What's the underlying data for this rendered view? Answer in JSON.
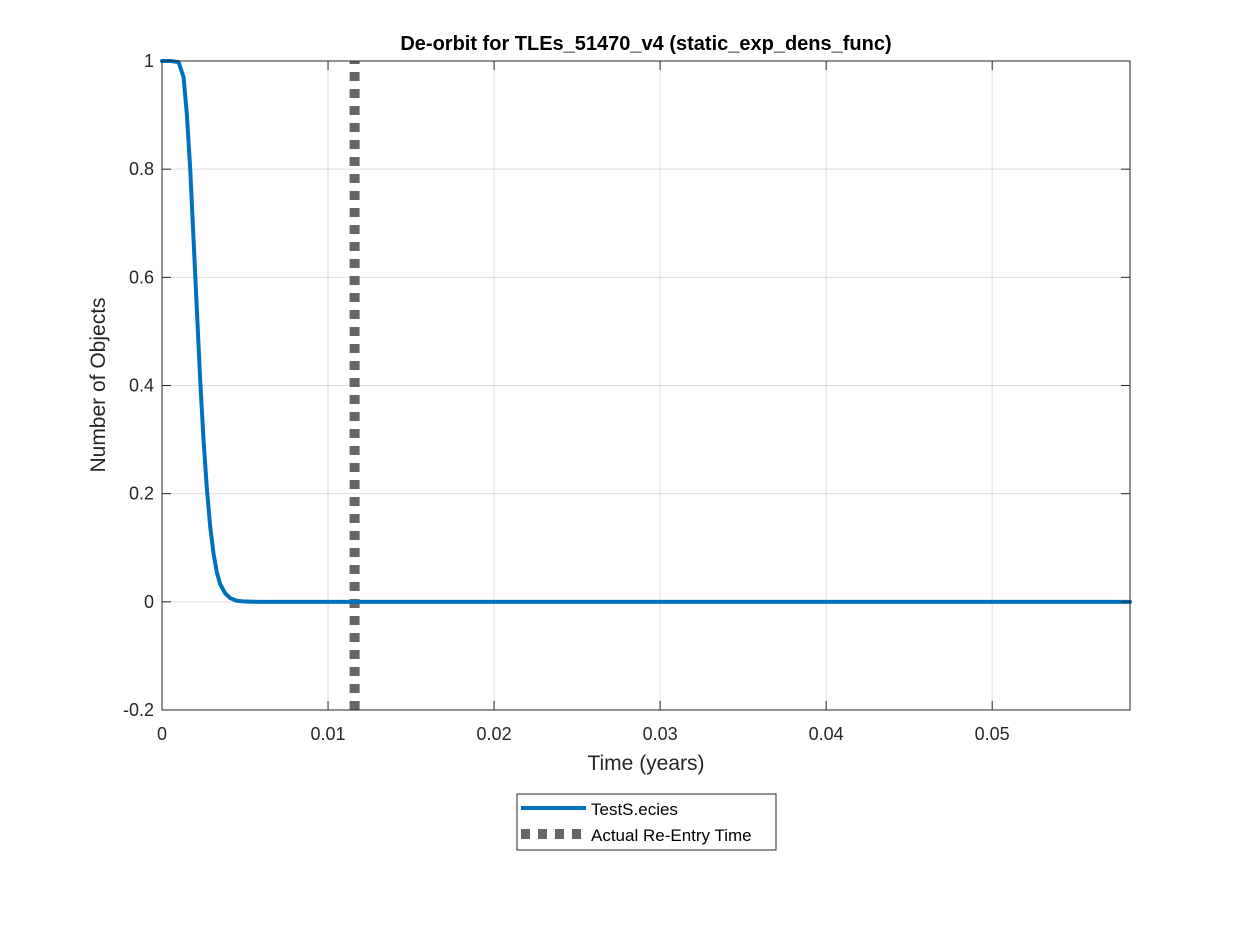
{
  "chart_data": {
    "type": "line",
    "title": "De-orbit for TLEs_51470_v4 (static_exp_dens_func)",
    "xlabel": "Time (years)",
    "ylabel": "Number of Objects",
    "xlim": [
      0,
      0.0583
    ],
    "ylim": [
      -0.2,
      1
    ],
    "xticks": [
      0,
      0.01,
      0.02,
      0.03,
      0.04,
      0.05
    ],
    "xtick_labels": [
      "0",
      "0.01",
      "0.02",
      "0.03",
      "0.04",
      "0.05"
    ],
    "yticks": [
      -0.2,
      0,
      0.2,
      0.4,
      0.6,
      0.8,
      1
    ],
    "ytick_labels": [
      "-0.2",
      "0",
      "0.2",
      "0.4",
      "0.6",
      "0.8",
      "1"
    ],
    "grid": true,
    "legend_position": "bottom-center outside",
    "series": [
      {
        "name": "TestS.ecies",
        "color": "#0072BD",
        "style": "solid",
        "x": [
          0,
          0.0005,
          0.001,
          0.0013,
          0.0015,
          0.0017,
          0.0019,
          0.0021,
          0.0023,
          0.0025,
          0.0027,
          0.0029,
          0.0031,
          0.0033,
          0.0035,
          0.0038,
          0.0041,
          0.0045,
          0.005,
          0.006,
          0.01,
          0.02,
          0.03,
          0.04,
          0.05,
          0.0583
        ],
        "y": [
          1.0,
          1.0,
          0.998,
          0.97,
          0.9,
          0.8,
          0.67,
          0.54,
          0.41,
          0.3,
          0.21,
          0.14,
          0.09,
          0.055,
          0.033,
          0.016,
          0.007,
          0.002,
          0.0005,
          0.0,
          0.0,
          0.0,
          0.0,
          0.0,
          0.0,
          0.0
        ]
      },
      {
        "name": "Actual Re-Entry Time",
        "color": "#666666",
        "style": "dotted",
        "x": [
          0.0116,
          0.0116
        ],
        "y": [
          -0.2,
          1.0
        ]
      }
    ]
  }
}
